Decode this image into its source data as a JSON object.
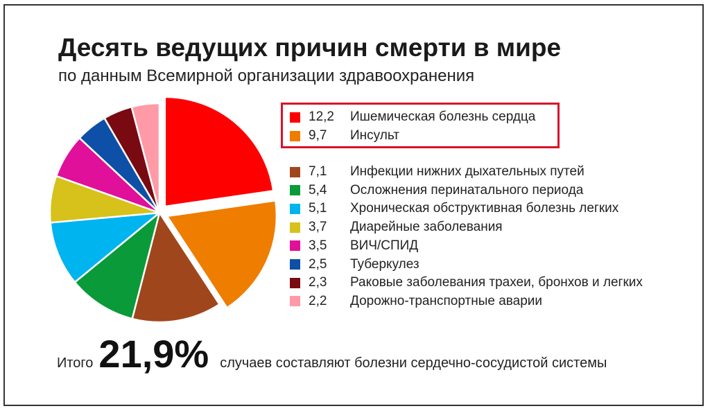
{
  "title": "Десять ведущих причин смерти в мире",
  "subtitle": "по данным Всемирной организации здравоохранения",
  "chart_data": {
    "type": "pie",
    "slices": [
      {
        "label": "Ишемическая болезнь сердца",
        "value": 12.2,
        "display": "12,2",
        "color": "#ff0000",
        "exploded": true
      },
      {
        "label": "Инсульт",
        "value": 9.7,
        "display": "9,7",
        "color": "#ef7d00",
        "exploded": true
      },
      {
        "label": "Инфекции нижних дыхательных путей",
        "value": 7.1,
        "display": "7,1",
        "color": "#a0461c",
        "exploded": false
      },
      {
        "label": "Осложнения перинатального периода",
        "value": 5.4,
        "display": "5,4",
        "color": "#0a9a3a",
        "exploded": false
      },
      {
        "label": "Хроническая обструктивная болезнь легких",
        "value": 5.1,
        "display": "5,1",
        "color": "#00b4f0",
        "exploded": false
      },
      {
        "label": "Диарейные заболевания",
        "value": 3.7,
        "display": "3,7",
        "color": "#d6c21a",
        "exploded": false
      },
      {
        "label": "ВИЧ/СПИД",
        "value": 3.5,
        "display": "3,5",
        "color": "#e0109a",
        "exploded": false
      },
      {
        "label": "Туберкулез",
        "value": 2.5,
        "display": "2,5",
        "color": "#0e4fa8",
        "exploded": false
      },
      {
        "label": "Раковые заболевания трахеи, бронхов и легких",
        "value": 2.3,
        "display": "2,3",
        "color": "#7a0a12",
        "exploded": false
      },
      {
        "label": "Дорожно-транспортные аварии",
        "value": 2.2,
        "display": "2,2",
        "color": "#ff9aa6",
        "exploded": false
      }
    ],
    "highlighted": [
      0,
      1
    ],
    "highlight_color": "#d8102a"
  },
  "footer": {
    "prefix": "Итого",
    "value": "21,9%",
    "suffix": "случаев составляют болезни сердечно-сосудистой системы"
  }
}
